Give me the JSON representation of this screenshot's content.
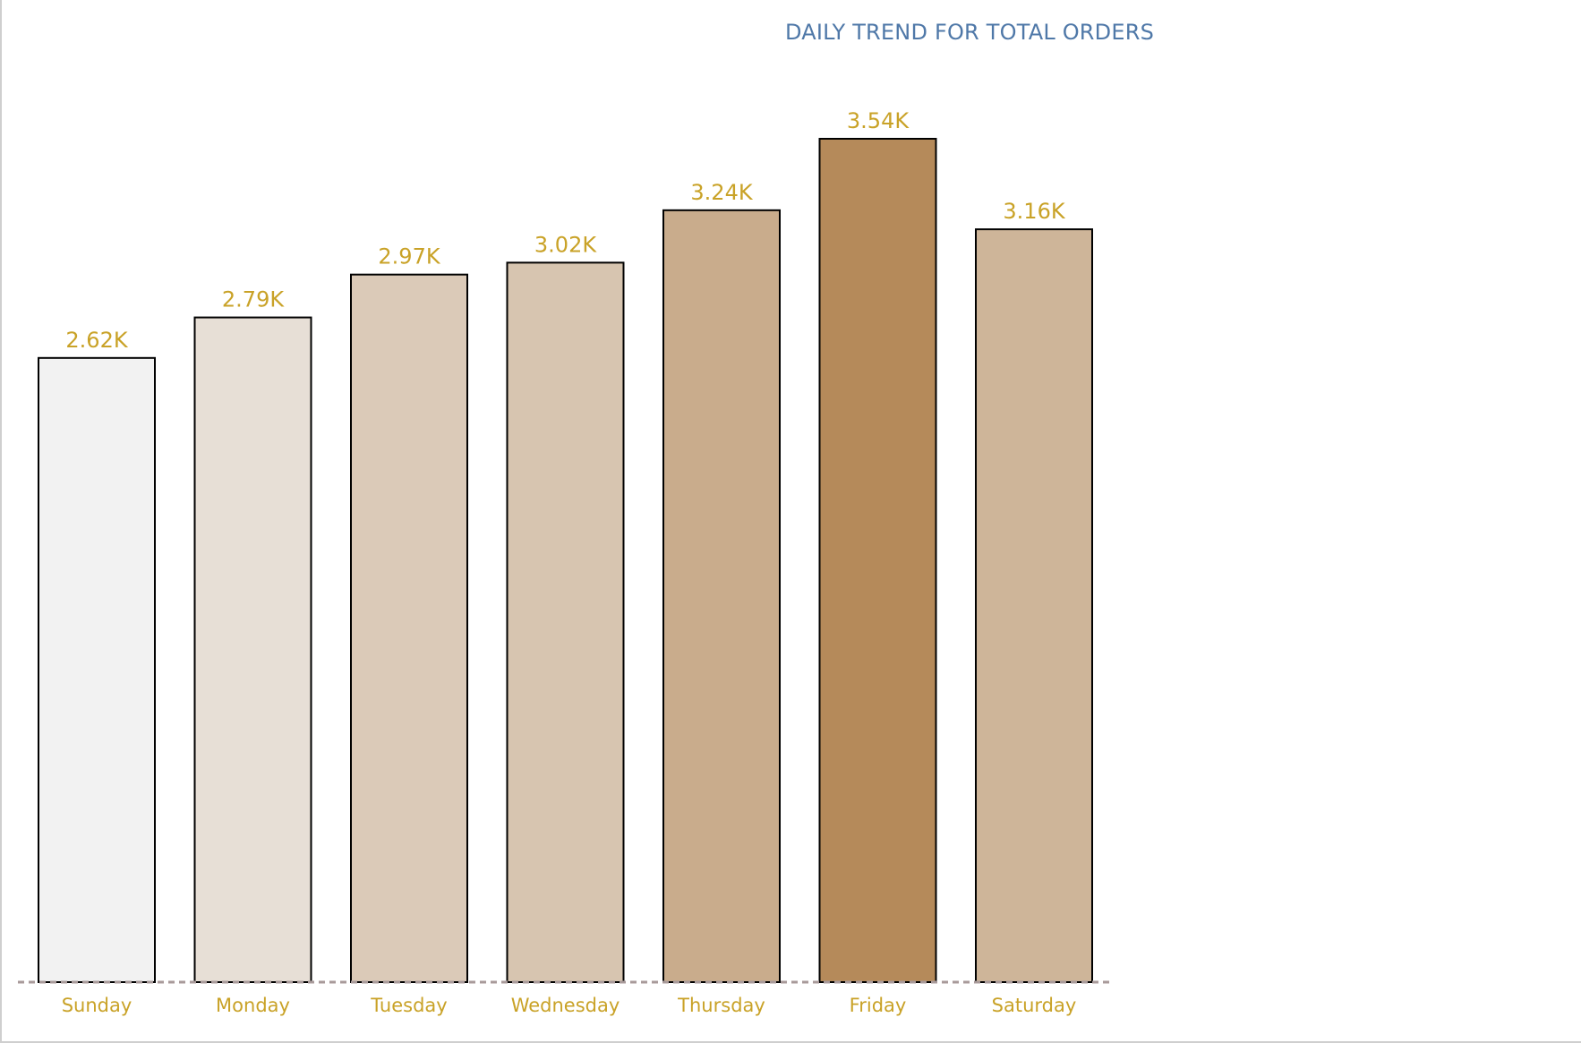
{
  "chart_data": {
    "type": "bar",
    "title": "DAILY TREND FOR TOTAL ORDERS",
    "xlabel": "",
    "ylabel": "",
    "categories": [
      "Sunday",
      "Monday",
      "Tuesday",
      "Wednesday",
      "Thursday",
      "Friday",
      "Saturday"
    ],
    "values": [
      2620,
      2790,
      2970,
      3020,
      3240,
      3540,
      3160
    ],
    "data_labels": [
      "2.62K",
      "2.79K",
      "2.97K",
      "3.02K",
      "3.24K",
      "3.54K",
      "3.16K"
    ],
    "ylim": [
      0,
      3540
    ],
    "grid": false,
    "legend": "none",
    "colors": {
      "title": "#4f78a8",
      "labels": "#c9a227",
      "bar_outline": "#000000",
      "baseline": "#a89a9a",
      "bar_low": "#f2f2f2",
      "bar_high": "#b58a5a"
    }
  }
}
